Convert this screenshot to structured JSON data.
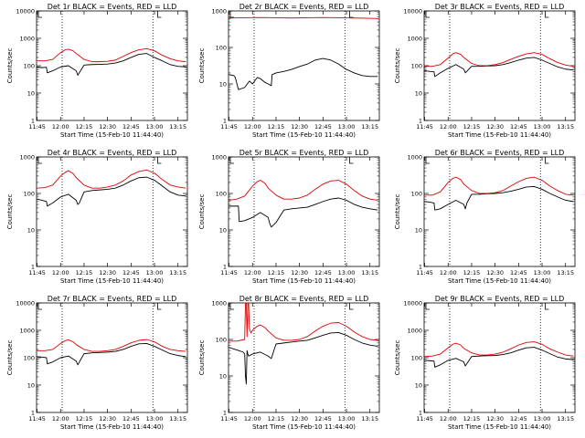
{
  "colors": {
    "events": "#000000",
    "lld": "#e00000",
    "axis": "#000000"
  },
  "common": {
    "xlabel": "Start Time (15-Feb-10 11:44:40)",
    "ylabel": "Counts/sec",
    "xticks": [
      "11:45",
      "12:00",
      "12:15",
      "12:30",
      "12:45",
      "13:00",
      "13:15"
    ],
    "xtick_minutes": [
      45,
      60,
      75,
      90,
      105,
      120,
      135
    ],
    "xlim_minutes": [
      44.67,
      141
    ],
    "dotted_x_minutes": [
      61,
      119
    ]
  },
  "chart_data": [
    {
      "type": "line",
      "title": "Det 1r BLACK = Events, RED = LLD",
      "ylim": [
        1,
        10000
      ],
      "yscale": "log",
      "yticks": [
        "1",
        "10",
        "100",
        "1000",
        "10000"
      ],
      "series": [
        {
          "name": "Events",
          "x": [
            45,
            48,
            51,
            51.5,
            55,
            60,
            65,
            70,
            71,
            75,
            80,
            85,
            90,
            95,
            100,
            105,
            110,
            115,
            120,
            125,
            130,
            135,
            140
          ],
          "y": [
            90,
            85,
            88,
            55,
            65,
            90,
            100,
            65,
            45,
            105,
            110,
            112,
            115,
            125,
            150,
            200,
            260,
            280,
            200,
            150,
            110,
            95,
            90
          ]
        },
        {
          "name": "LLD",
          "x": [
            45,
            50,
            55,
            60,
            63,
            65,
            68,
            70,
            75,
            80,
            85,
            90,
            95,
            100,
            105,
            110,
            115,
            120,
            125,
            130,
            135,
            140
          ],
          "y": [
            150,
            150,
            170,
            300,
            380,
            400,
            350,
            280,
            170,
            140,
            140,
            145,
            160,
            220,
            300,
            380,
            420,
            350,
            240,
            180,
            150,
            140
          ]
        }
      ]
    },
    {
      "type": "line",
      "title": "Det 2r BLACK = Events, RED = LLD",
      "ylim": [
        1,
        1000
      ],
      "yscale": "log",
      "yticks": [
        "1",
        "10",
        "100",
        "1000"
      ],
      "series": [
        {
          "name": "Events",
          "x": [
            45,
            48,
            49,
            51,
            55,
            58,
            60,
            63,
            65,
            68,
            70,
            72,
            72.5,
            75,
            80,
            85,
            90,
            95,
            100,
            105,
            110,
            115,
            120,
            125,
            130,
            135,
            140
          ],
          "y": [
            18,
            17,
            15,
            7,
            8,
            12,
            10,
            15,
            14,
            11,
            10,
            9,
            18,
            20,
            22,
            25,
            30,
            35,
            45,
            50,
            45,
            35,
            25,
            20,
            17,
            16,
            16
          ]
        },
        {
          "name": "LLD",
          "x": [
            45,
            55,
            65,
            75,
            85,
            95,
            105,
            115,
            125,
            135,
            140
          ],
          "y": [
            640,
            650,
            660,
            650,
            640,
            650,
            660,
            650,
            640,
            630,
            620
          ]
        }
      ]
    },
    {
      "type": "line",
      "title": "Det 3r BLACK = Events, RED = LLD",
      "ylim": [
        1,
        10000
      ],
      "yscale": "log",
      "yticks": [
        "1",
        "10",
        "100",
        "1000",
        "10000"
      ],
      "series": [
        {
          "name": "Events",
          "x": [
            45,
            48,
            51,
            51.5,
            55,
            60,
            65,
            70,
            71,
            75,
            80,
            85,
            90,
            95,
            100,
            105,
            110,
            115,
            120,
            125,
            130,
            135,
            140
          ],
          "y": [
            65,
            62,
            60,
            40,
            55,
            80,
            110,
            75,
            55,
            95,
            95,
            98,
            100,
            110,
            130,
            160,
            190,
            200,
            160,
            120,
            90,
            75,
            70
          ]
        },
        {
          "name": "LLD",
          "x": [
            45,
            50,
            55,
            60,
            63,
            65,
            68,
            70,
            75,
            80,
            85,
            90,
            95,
            100,
            105,
            110,
            115,
            120,
            125,
            130,
            135,
            140
          ],
          "y": [
            95,
            95,
            110,
            190,
            270,
            300,
            260,
            200,
            120,
            100,
            100,
            110,
            130,
            170,
            220,
            270,
            300,
            260,
            180,
            130,
            105,
            95
          ]
        }
      ]
    },
    {
      "type": "line",
      "title": "Det 4r BLACK = Events, RED = LLD",
      "ylim": [
        1,
        1000
      ],
      "yscale": "log",
      "yticks": [
        "1",
        "10",
        "100",
        "1000"
      ],
      "series": [
        {
          "name": "Events",
          "x": [
            45,
            48,
            51,
            51.5,
            55,
            60,
            65,
            70,
            71,
            72,
            75,
            80,
            85,
            90,
            95,
            100,
            105,
            110,
            115,
            120,
            125,
            130,
            135,
            140
          ],
          "y": [
            70,
            65,
            60,
            45,
            55,
            80,
            95,
            65,
            50,
            55,
            110,
            120,
            125,
            130,
            140,
            170,
            220,
            270,
            280,
            230,
            160,
            110,
            90,
            85
          ]
        },
        {
          "name": "LLD",
          "x": [
            45,
            50,
            55,
            60,
            63,
            65,
            68,
            70,
            75,
            80,
            85,
            90,
            95,
            100,
            105,
            110,
            115,
            120,
            125,
            130,
            135,
            140
          ],
          "y": [
            140,
            145,
            170,
            300,
            380,
            420,
            350,
            270,
            170,
            140,
            140,
            150,
            170,
            220,
            320,
            400,
            440,
            360,
            240,
            170,
            150,
            140
          ]
        }
      ]
    },
    {
      "type": "line",
      "title": "Det 5r BLACK = Events, RED = LLD",
      "ylim": [
        1,
        1000
      ],
      "yscale": "log",
      "yticks": [
        "1",
        "10",
        "100",
        "1000"
      ],
      "series": [
        {
          "name": "Events",
          "x": [
            45,
            48,
            51,
            51.5,
            55,
            60,
            65,
            70,
            71,
            72,
            75,
            80,
            85,
            90,
            95,
            100,
            105,
            110,
            115,
            120,
            125,
            130,
            135,
            140
          ],
          "y": [
            45,
            45,
            45,
            17,
            18,
            22,
            30,
            22,
            15,
            12,
            16,
            35,
            38,
            40,
            42,
            50,
            60,
            70,
            75,
            65,
            50,
            42,
            38,
            35
          ]
        },
        {
          "name": "LLD",
          "x": [
            45,
            50,
            55,
            60,
            63,
            65,
            68,
            70,
            75,
            80,
            85,
            90,
            95,
            100,
            105,
            110,
            115,
            120,
            125,
            130,
            135,
            140
          ],
          "y": [
            65,
            70,
            85,
            160,
            210,
            230,
            190,
            140,
            90,
            70,
            70,
            75,
            90,
            130,
            180,
            220,
            230,
            180,
            120,
            85,
            70,
            65
          ]
        }
      ]
    },
    {
      "type": "line",
      "title": "Det 6r BLACK = Events, RED = LLD",
      "ylim": [
        1,
        1000
      ],
      "yscale": "log",
      "yticks": [
        "1",
        "10",
        "100",
        "1000"
      ],
      "series": [
        {
          "name": "Events",
          "x": [
            45,
            48,
            51,
            51.5,
            55,
            60,
            65,
            70,
            71,
            72,
            75,
            80,
            85,
            90,
            95,
            100,
            105,
            110,
            115,
            120,
            125,
            130,
            135,
            140
          ],
          "y": [
            60,
            58,
            55,
            35,
            38,
            50,
            65,
            50,
            38,
            55,
            95,
            95,
            98,
            100,
            105,
            115,
            130,
            150,
            155,
            130,
            100,
            80,
            65,
            60
          ]
        },
        {
          "name": "LLD",
          "x": [
            45,
            50,
            55,
            60,
            63,
            65,
            68,
            70,
            75,
            80,
            85,
            90,
            95,
            100,
            105,
            110,
            115,
            120,
            125,
            130,
            135,
            140
          ],
          "y": [
            90,
            90,
            110,
            200,
            260,
            280,
            240,
            180,
            120,
            100,
            100,
            105,
            120,
            160,
            210,
            260,
            280,
            230,
            160,
            120,
            95,
            90
          ]
        }
      ]
    },
    {
      "type": "line",
      "title": "Det 7r BLACK = Events, RED = LLD",
      "ylim": [
        1,
        10000
      ],
      "yscale": "log",
      "yticks": [
        "1",
        "10",
        "100",
        "1000",
        "10000"
      ],
      "series": [
        {
          "name": "Events",
          "x": [
            45,
            48,
            51,
            51.5,
            55,
            60,
            65,
            70,
            71,
            75,
            80,
            85,
            90,
            95,
            100,
            105,
            110,
            115,
            120,
            125,
            130,
            135,
            140
          ],
          "y": [
            110,
            105,
            100,
            60,
            70,
            100,
            115,
            75,
            55,
            140,
            150,
            155,
            160,
            170,
            200,
            260,
            320,
            330,
            260,
            190,
            140,
            120,
            110
          ]
        },
        {
          "name": "LLD",
          "x": [
            45,
            50,
            55,
            60,
            63,
            65,
            68,
            70,
            75,
            80,
            85,
            90,
            95,
            100,
            105,
            110,
            115,
            120,
            125,
            130,
            135,
            140
          ],
          "y": [
            180,
            180,
            200,
            330,
            420,
            450,
            380,
            300,
            200,
            170,
            170,
            180,
            200,
            260,
            350,
            430,
            460,
            380,
            260,
            200,
            180,
            170
          ]
        }
      ]
    },
    {
      "type": "line",
      "title": "Det 8r BLACK = Events, RED = LLD",
      "ylim": [
        1,
        1000
      ],
      "yscale": "log",
      "yticks": [
        "1",
        "10",
        "100",
        "1000"
      ],
      "series": [
        {
          "name": "Events",
          "x": [
            45,
            48,
            51,
            54,
            55,
            55.5,
            56,
            56.5,
            57,
            57.5,
            60,
            65,
            70,
            72,
            75,
            80,
            85,
            90,
            95,
            100,
            105,
            110,
            115,
            120,
            125,
            130,
            135,
            140
          ],
          "y": [
            60,
            55,
            50,
            45,
            40,
            10,
            6,
            50,
            40,
            35,
            40,
            45,
            35,
            30,
            75,
            80,
            85,
            90,
            95,
            110,
            130,
            150,
            155,
            130,
            100,
            80,
            70,
            65
          ]
        },
        {
          "name": "LLD",
          "x": [
            45,
            50,
            55,
            55.5,
            56,
            56.5,
            57,
            57.5,
            58,
            59,
            60,
            63,
            65,
            68,
            70,
            75,
            80,
            85,
            90,
            95,
            100,
            105,
            110,
            115,
            120,
            125,
            130,
            135,
            140
          ],
          "y": [
            90,
            90,
            100,
            1000,
            1000,
            120,
            1000,
            1000,
            200,
            150,
            180,
            230,
            250,
            210,
            170,
            110,
            95,
            95,
            100,
            120,
            170,
            230,
            280,
            290,
            230,
            160,
            120,
            100,
            95
          ]
        }
      ]
    },
    {
      "type": "line",
      "title": "Det 9r BLACK = Events, RED = LLD",
      "ylim": [
        1,
        10000
      ],
      "yscale": "log",
      "yticks": [
        "1",
        "10",
        "100",
        "1000",
        "10000"
      ],
      "series": [
        {
          "name": "Events",
          "x": [
            45,
            48,
            51,
            51.5,
            55,
            60,
            65,
            70,
            71,
            75,
            80,
            85,
            90,
            95,
            100,
            105,
            110,
            115,
            120,
            125,
            130,
            135,
            140
          ],
          "y": [
            80,
            78,
            75,
            45,
            55,
            80,
            95,
            70,
            50,
            110,
            115,
            118,
            120,
            130,
            150,
            190,
            230,
            240,
            190,
            140,
            105,
            90,
            85
          ]
        },
        {
          "name": "LLD",
          "x": [
            45,
            50,
            55,
            60,
            63,
            65,
            68,
            70,
            75,
            80,
            85,
            90,
            95,
            100,
            105,
            110,
            115,
            120,
            125,
            130,
            135,
            140
          ],
          "y": [
            110,
            115,
            135,
            230,
            310,
            340,
            290,
            220,
            150,
            125,
            125,
            135,
            160,
            210,
            290,
            360,
            380,
            310,
            210,
            160,
            125,
            115
          ]
        }
      ]
    }
  ]
}
